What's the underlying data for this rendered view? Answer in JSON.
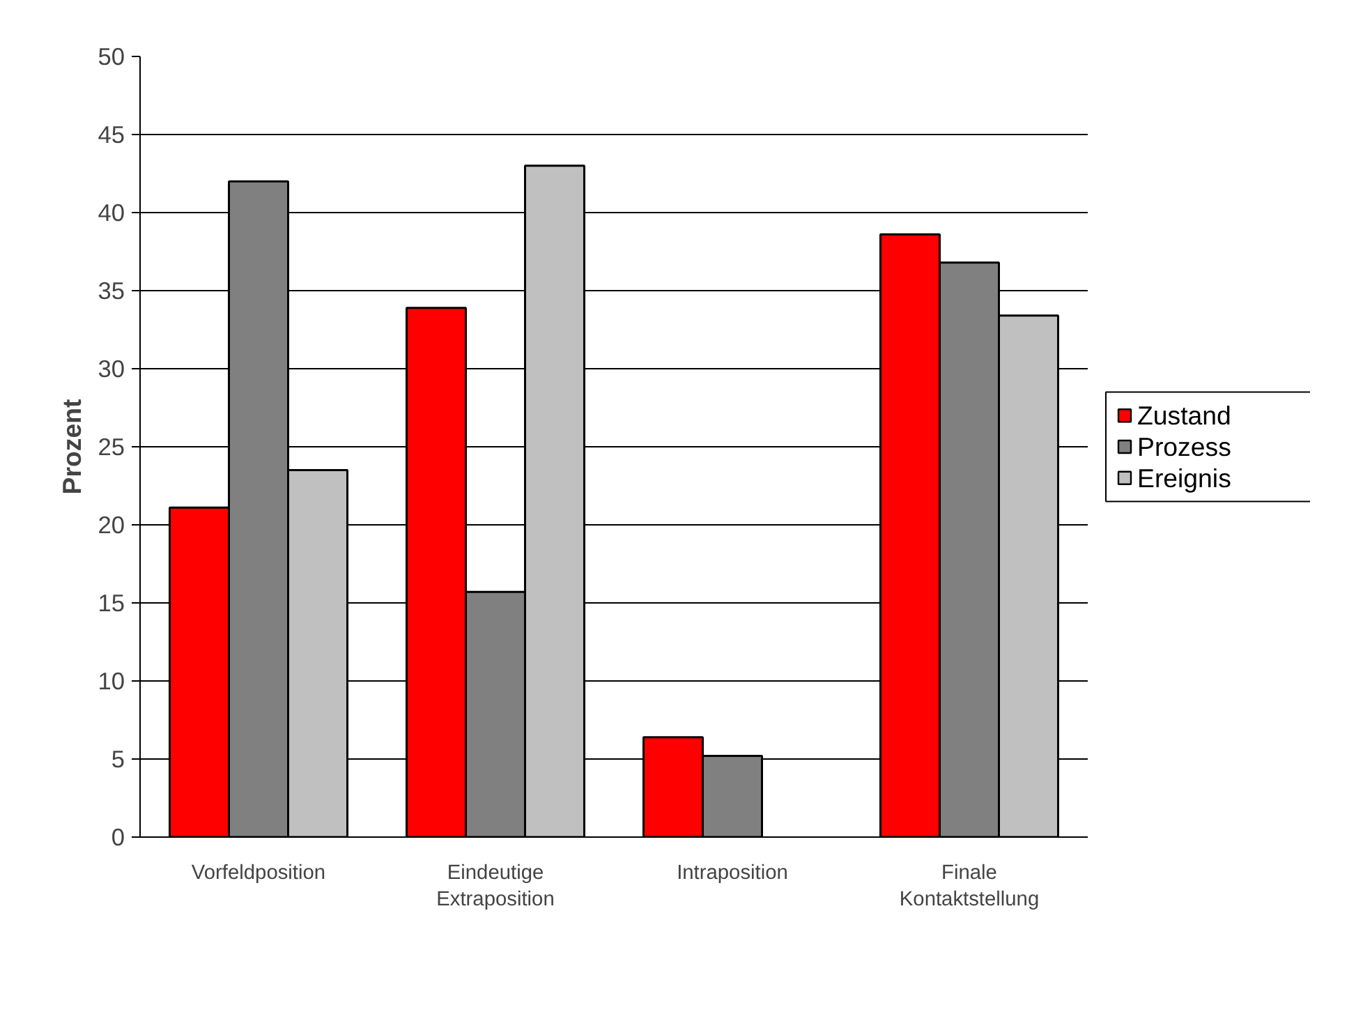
{
  "chart_data": {
    "type": "bar",
    "ylabel": "Prozent",
    "categories": [
      "Vorfeldposition",
      "Eindeutige Extraposition",
      "Intraposition",
      "Finale Kontaktstellung"
    ],
    "series": [
      {
        "name": "Zustand",
        "color": "#ff0000",
        "values": [
          21.1,
          33.9,
          6.4,
          38.6
        ]
      },
      {
        "name": "Prozess",
        "color": "#808080",
        "values": [
          42.0,
          15.7,
          5.2,
          36.8
        ]
      },
      {
        "name": "Ereignis",
        "color": "#c0c0c0",
        "values": [
          23.5,
          43.0,
          null,
          33.4
        ]
      }
    ],
    "ylim": [
      0,
      50
    ],
    "yticks": [
      0,
      5,
      10,
      15,
      20,
      25,
      30,
      35,
      40,
      45,
      50
    ],
    "grid": "y",
    "legend": "right"
  }
}
